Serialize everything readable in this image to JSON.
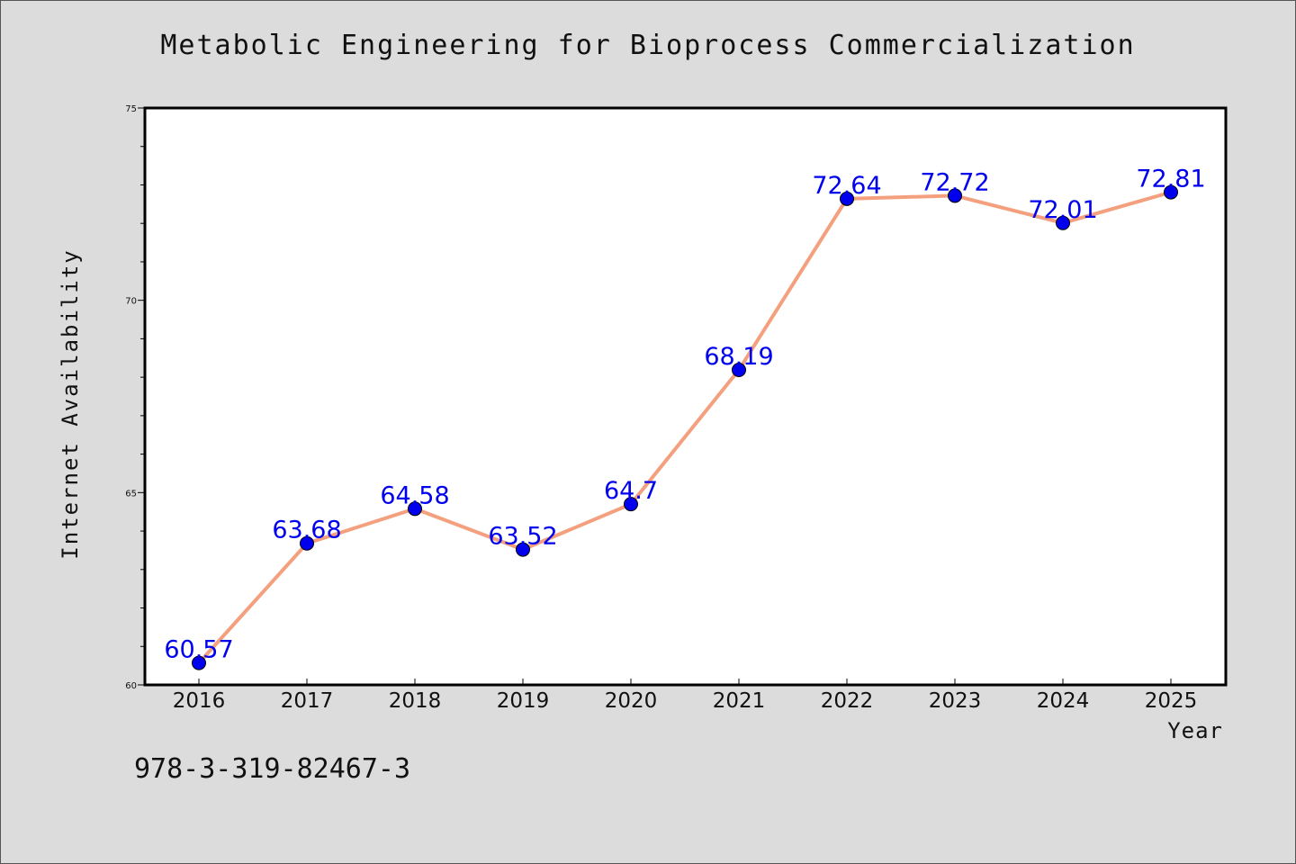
{
  "chart_data": {
    "type": "line",
    "title": "Metabolic Engineering for Bioprocess Commercialization",
    "xlabel": "Year",
    "ylabel": "Internet Availability",
    "categories": [
      "2016",
      "2017",
      "2018",
      "2019",
      "2020",
      "2021",
      "2022",
      "2023",
      "2024",
      "2025"
    ],
    "values": [
      60.57,
      63.68,
      64.58,
      63.52,
      64.7,
      68.19,
      72.64,
      72.72,
      72.01,
      72.81
    ],
    "data_labels": [
      "60.57",
      "63.68",
      "64.58",
      "63.52",
      "64.7",
      "68.19",
      "72.64",
      "72.72",
      "72.01",
      "72.81"
    ],
    "ylim": [
      60,
      75
    ],
    "y_ticks": [
      60,
      65,
      70,
      75
    ],
    "y_minor_step": 1,
    "grid": false,
    "line_color": "#f4a07e",
    "marker_color": "#0000ee",
    "label_color": "#0000ee"
  },
  "footer_text": "978-3-319-82467-3"
}
